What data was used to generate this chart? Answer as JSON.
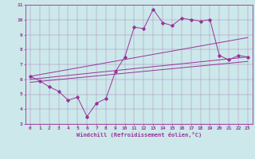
{
  "xlabel": "Windchill (Refroidissement éolien,°C)",
  "ylabel": "",
  "xlim": [
    -0.5,
    23.5
  ],
  "ylim": [
    3,
    11
  ],
  "xticks": [
    0,
    1,
    2,
    3,
    4,
    5,
    6,
    7,
    8,
    9,
    10,
    11,
    12,
    13,
    14,
    15,
    16,
    17,
    18,
    19,
    20,
    21,
    22,
    23
  ],
  "yticks": [
    3,
    4,
    5,
    6,
    7,
    8,
    9,
    10,
    11
  ],
  "bg_color": "#cce8ea",
  "line_color": "#993399",
  "line1_x": [
    0,
    1,
    2,
    3,
    4,
    5,
    6,
    7,
    8,
    9,
    10,
    11,
    12,
    13,
    14,
    15,
    16,
    17,
    18,
    19,
    20,
    21,
    22,
    23
  ],
  "line1_y": [
    6.2,
    5.9,
    5.5,
    5.2,
    4.6,
    4.8,
    3.5,
    4.4,
    4.7,
    6.5,
    7.5,
    9.5,
    9.4,
    10.7,
    9.8,
    9.6,
    10.1,
    10.0,
    9.9,
    10.0,
    7.6,
    7.3,
    7.6,
    7.5
  ],
  "line2_x": [
    0,
    23
  ],
  "line2_y": [
    6.2,
    8.8
  ],
  "line3_x": [
    0,
    23
  ],
  "line3_y": [
    6.0,
    7.5
  ],
  "line4_x": [
    0,
    23
  ],
  "line4_y": [
    5.8,
    7.2
  ],
  "tick_fontsize": 4.5,
  "xlabel_fontsize": 5.0
}
